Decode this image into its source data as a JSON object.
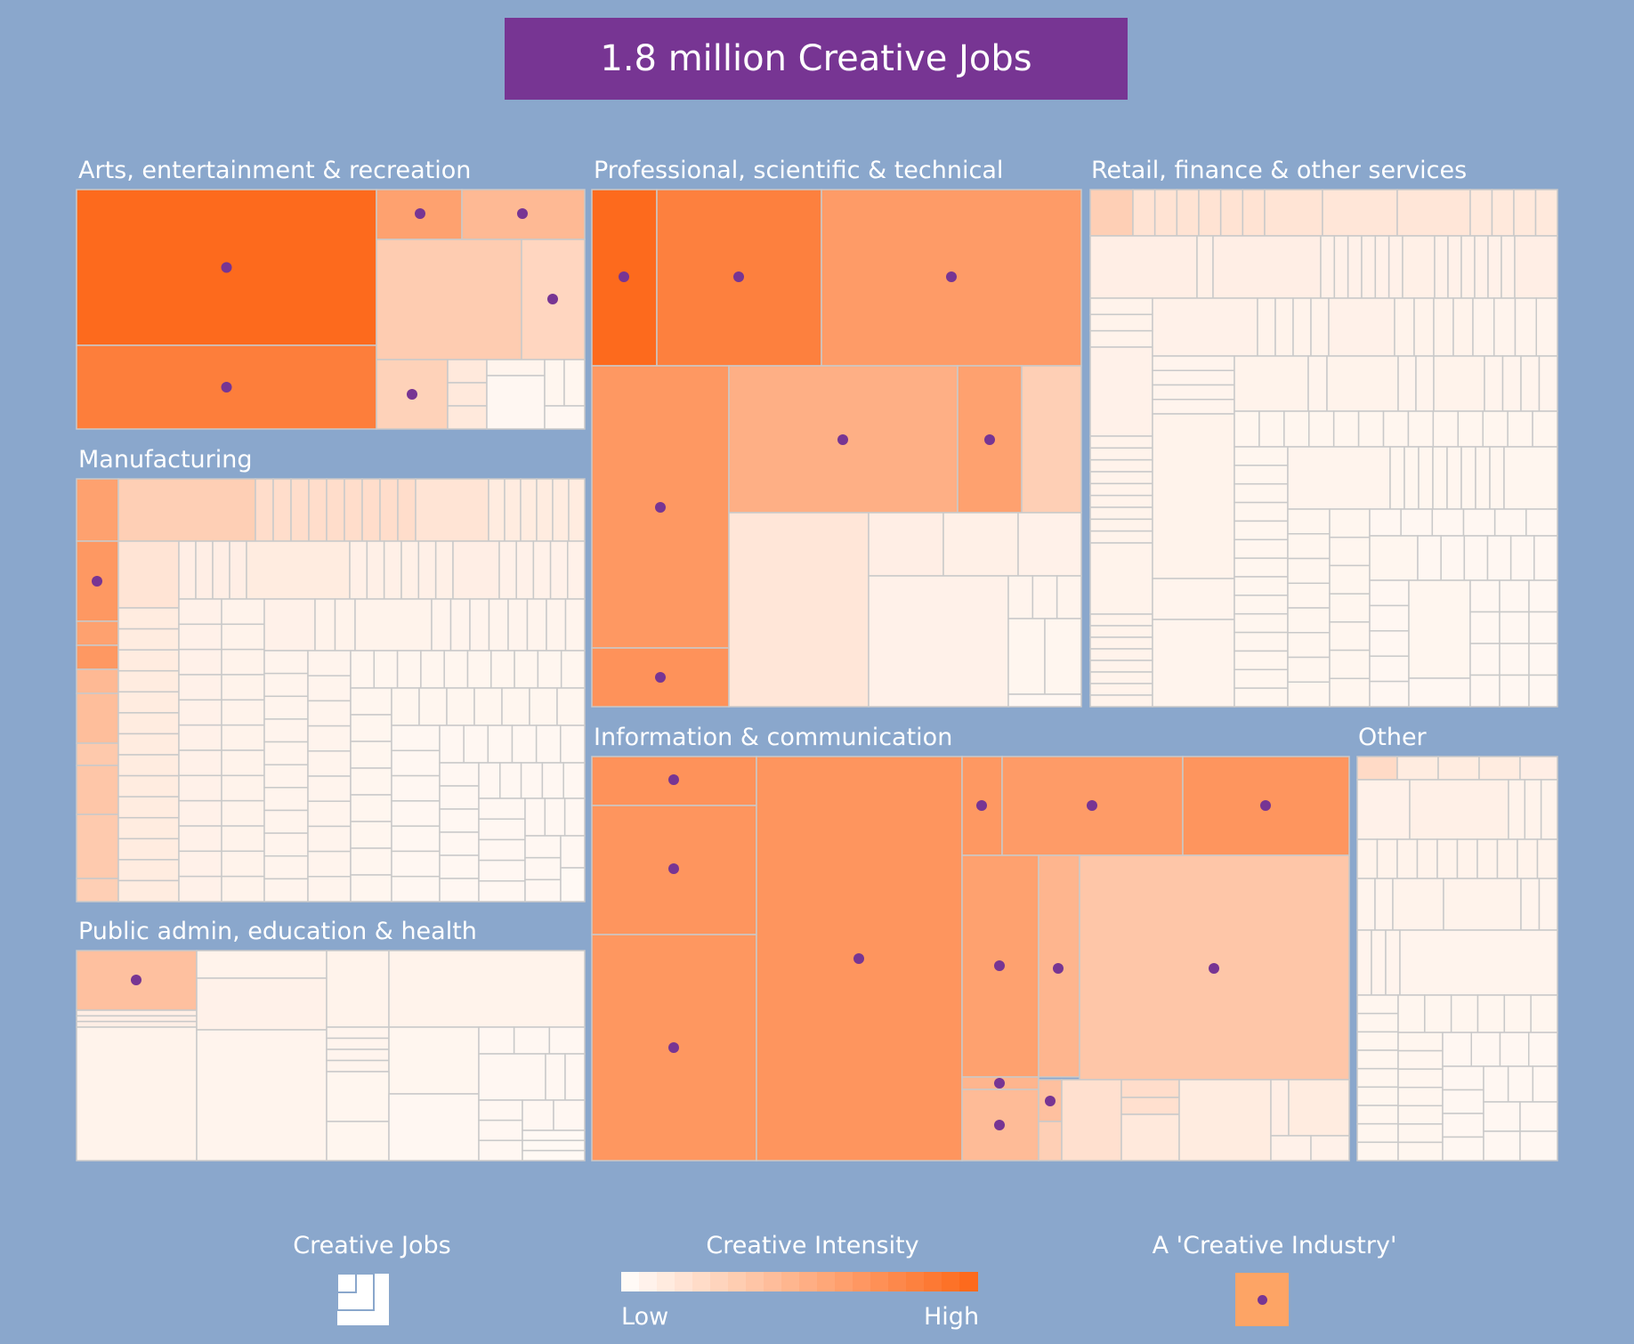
{
  "title": "1.8 million Creative Jobs",
  "colors": {
    "background": "#8aa7cc",
    "title_bg": "#773593",
    "dot": "#773593",
    "cell_border": "#c9c9c9",
    "intensity_low": "#fffaf6",
    "intensity_high": "#fd6a1d"
  },
  "chart_data": {
    "type": "treemap",
    "sectors": [
      "Arts, entertainment & recreation",
      "Professional, scientific & technical",
      "Retail, finance & other services",
      "Manufacturing",
      "Information & communication",
      "Other",
      "Public admin, education & health"
    ],
    "legend": {
      "size_title": "Creative Jobs",
      "color_title": "Creative Intensity",
      "color_low": "Low",
      "color_high": "High",
      "marker_title": "A 'Creative Industry'"
    },
    "color_scale": "intensity 0 (Low) to 1 (High)"
  }
}
